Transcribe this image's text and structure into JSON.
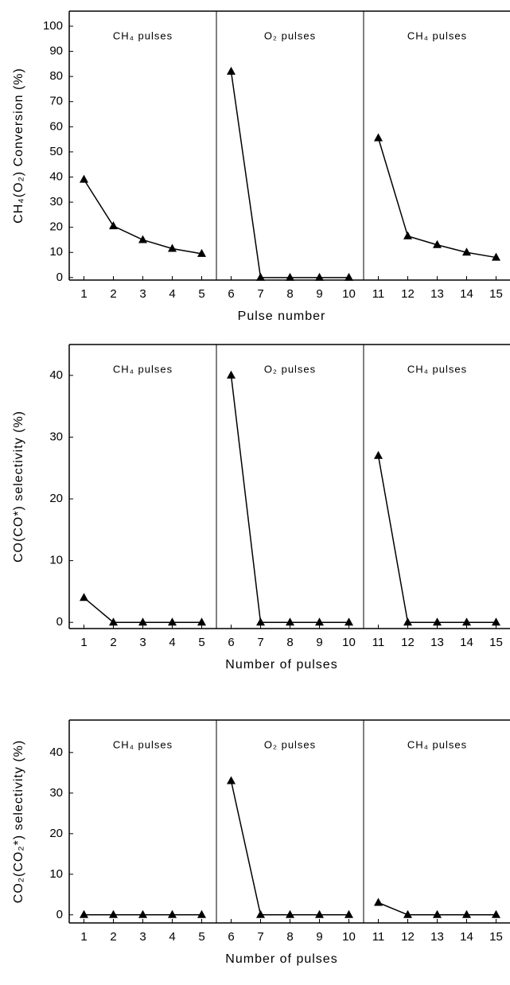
{
  "chart_data": [
    {
      "type": "line",
      "y_label": "CH₄(O₂) Conversion (%)",
      "x_label": "Pulse number",
      "xlim": [
        0.5,
        15.5
      ],
      "xticks": [
        1,
        2,
        3,
        4,
        5,
        6,
        7,
        8,
        9,
        10,
        11,
        12,
        13,
        14,
        15
      ],
      "ylim": [
        -1,
        106
      ],
      "yticks": [
        0,
        10,
        20,
        30,
        40,
        50,
        60,
        70,
        80,
        90,
        100
      ],
      "color": "#000000",
      "series": [
        {
          "annotation": "CH₄ pulses",
          "x": [
            1,
            2,
            3,
            4,
            5
          ],
          "values": [
            39,
            20.5,
            15,
            11.5,
            9.5
          ]
        },
        {
          "annotation": "O₂ pulses",
          "x": [
            6,
            7,
            8,
            9,
            10
          ],
          "values": [
            82,
            0,
            0,
            0,
            0
          ]
        },
        {
          "annotation": "CH₄ pulses",
          "x": [
            11,
            12,
            13,
            14,
            15
          ],
          "values": [
            55.5,
            16.5,
            13,
            10,
            8
          ]
        }
      ]
    },
    {
      "type": "line",
      "y_label": "CO(CO*) selectivity (%)",
      "x_label": "Number of pulses",
      "xlim": [
        0.5,
        15.5
      ],
      "xticks": [
        1,
        2,
        3,
        4,
        5,
        6,
        7,
        8,
        9,
        10,
        11,
        12,
        13,
        14,
        15
      ],
      "ylim": [
        -1,
        45
      ],
      "yticks": [
        0,
        10,
        20,
        30,
        40
      ],
      "color": "#000000",
      "series": [
        {
          "annotation": "CH₄ pulses",
          "x": [
            1,
            2,
            3,
            4,
            5
          ],
          "values": [
            4,
            0,
            0,
            0,
            0
          ]
        },
        {
          "annotation": "O₂ pulses",
          "x": [
            6,
            7,
            8,
            9,
            10
          ],
          "values": [
            40,
            0,
            0,
            0,
            0
          ]
        },
        {
          "annotation": "CH₄ pulses",
          "x": [
            11,
            12,
            13,
            14,
            15
          ],
          "values": [
            27,
            0,
            0,
            0,
            0
          ]
        }
      ]
    },
    {
      "type": "line",
      "y_label": "CO₂(CO₂*) selectivity (%)",
      "x_label": "Number of pulses",
      "xlim": [
        0.5,
        15.5
      ],
      "xticks": [
        1,
        2,
        3,
        4,
        5,
        6,
        7,
        8,
        9,
        10,
        11,
        12,
        13,
        14,
        15
      ],
      "ylim": [
        -2,
        48
      ],
      "yticks": [
        0,
        10,
        20,
        30,
        40
      ],
      "color": "#000000",
      "series": [
        {
          "annotation": "CH₄ pulses",
          "x": [
            1,
            2,
            3,
            4,
            5
          ],
          "values": [
            0,
            0,
            0,
            0,
            0
          ]
        },
        {
          "annotation": "O₂ pulses",
          "x": [
            6,
            7,
            8,
            9,
            10
          ],
          "values": [
            33,
            0,
            0,
            0,
            0
          ]
        },
        {
          "annotation": "CH₄ pulses",
          "x": [
            11,
            12,
            13,
            14,
            15
          ],
          "values": [
            3,
            0,
            0,
            0,
            0
          ]
        }
      ]
    }
  ]
}
